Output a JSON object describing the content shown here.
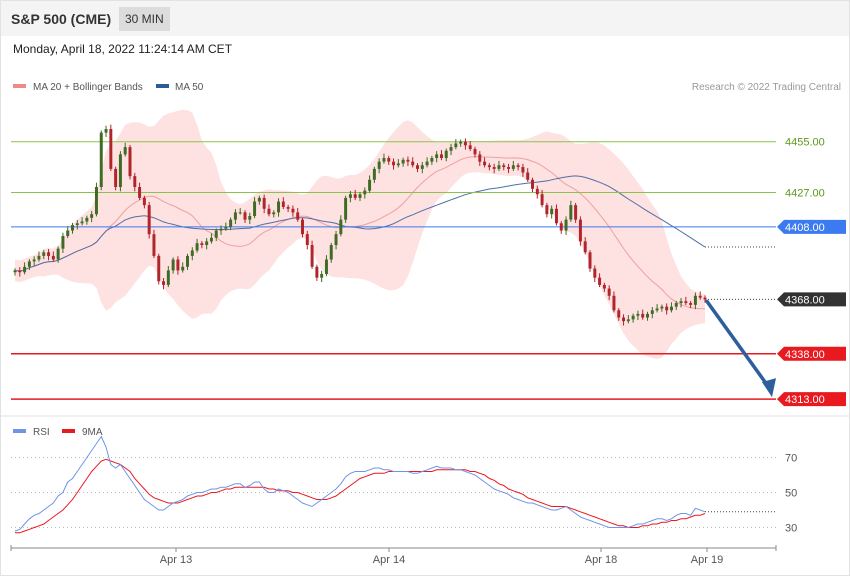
{
  "header": {
    "title": "S&P 500 (CME)",
    "interval": "30 MIN",
    "timestamp": "Monday, April 18, 2022 11:24:14 AM CET"
  },
  "credit": "Research © 2022 Trading Central",
  "colors": {
    "up": "#3f6b25",
    "down": "#b0242b",
    "bands": "#fdd7d7",
    "ma20": "#f0a0a0",
    "ma50": "#4f6fa8",
    "support": "#e8191f",
    "pivot": "#3b7af0",
    "resistance": "#8bc34a",
    "last": "#333333",
    "arrow": "#2f5e9e",
    "rsi": "#6f95e8",
    "rsi_ma": "#e8191f"
  },
  "chart_data": [
    {
      "type": "candlestick",
      "legend": [
        {
          "name": "MA 20 + Bollinger Bands",
          "color": "#f08a8a"
        },
        {
          "name": "MA 50",
          "color": "#2d5b9a"
        }
      ],
      "x_ticks": [
        "Apr 13",
        "Apr 14",
        "Apr 18",
        "Apr 19"
      ],
      "ylim": [
        4307,
        4478
      ],
      "levels": [
        {
          "label": "4455.00",
          "value": 4455,
          "kind": "resistance"
        },
        {
          "label": "4427.00",
          "value": 4427,
          "kind": "resistance"
        },
        {
          "label": "4408.00",
          "value": 4408,
          "kind": "pivot"
        },
        {
          "label": "4368.00",
          "value": 4368,
          "kind": "last"
        },
        {
          "label": "4338.00",
          "value": 4338,
          "kind": "support"
        },
        {
          "label": "4313.00",
          "value": 4313,
          "kind": "support"
        }
      ],
      "close": [
        4384,
        4383,
        4386,
        4389,
        4390,
        4392,
        4394,
        4392,
        4390,
        4396,
        4403,
        4406,
        4409,
        4410,
        4411,
        4413,
        4415,
        4430,
        4460,
        4462,
        4440,
        4430,
        4448,
        4452,
        4436,
        4430,
        4424,
        4420,
        4404,
        4392,
        4378,
        4376,
        4384,
        4390,
        4384,
        4386,
        4392,
        4395,
        4399,
        4398,
        4400,
        4402,
        4406,
        4407,
        4408,
        4412,
        4416,
        4416,
        4412,
        4414,
        4422,
        4424,
        4418,
        4415,
        4416,
        4422,
        4419,
        4418,
        4416,
        4412,
        4404,
        4398,
        4386,
        4380,
        4382,
        4390,
        4398,
        4404,
        4412,
        4424,
        4426,
        4424,
        4426,
        4428,
        4434,
        4440,
        4444,
        4446,
        4444,
        4442,
        4443,
        4445,
        4444,
        4442,
        4440,
        4442,
        4444,
        4446,
        4448,
        4446,
        4450,
        4452,
        4454,
        4455,
        4453,
        4451,
        4448,
        4444,
        4442,
        4441,
        4440,
        4442,
        4441,
        4440,
        4442,
        4441,
        4438,
        4434,
        4429,
        4426,
        4420,
        4415,
        4418,
        4410,
        4406,
        4412,
        4420,
        4412,
        4400,
        4394,
        4385,
        4380,
        4376,
        4374,
        4370,
        4362,
        4358,
        4356,
        4357,
        4359,
        4360,
        4358,
        4360,
        4362,
        4363,
        4364,
        4362,
        4364,
        4366,
        4367,
        4366,
        4365,
        4370,
        4369,
        4368
      ],
      "rsi": {
        "ylim": [
          20,
          80
        ],
        "ticks": [
          30,
          50,
          70
        ],
        "rsi": [
          28,
          29,
          32,
          35,
          37,
          38,
          40,
          42,
          44,
          48,
          50,
          56,
          58,
          62,
          66,
          70,
          74,
          78,
          82,
          76,
          66,
          64,
          66,
          62,
          58,
          54,
          50,
          46,
          44,
          42,
          40,
          40,
          42,
          44,
          45,
          46,
          48,
          49,
          50,
          50,
          51,
          52,
          52,
          53,
          53,
          54,
          55,
          55,
          53,
          54,
          56,
          56,
          52,
          50,
          50,
          52,
          51,
          50,
          48,
          46,
          44,
          43,
          42,
          44,
          46,
          48,
          50,
          52,
          55,
          59,
          61,
          62,
          62,
          62,
          63,
          64,
          64,
          63,
          63,
          62,
          62,
          62,
          62,
          61,
          61,
          62,
          63,
          64,
          65,
          64,
          64,
          64,
          63,
          63,
          62,
          61,
          60,
          58,
          56,
          54,
          52,
          51,
          50,
          49,
          47,
          46,
          45,
          44,
          44,
          43,
          42,
          41,
          40,
          40,
          41,
          42,
          40,
          38,
          36,
          35,
          34,
          33,
          32,
          31,
          30,
          30,
          30,
          30,
          30,
          31,
          32,
          32,
          33,
          34,
          35,
          35,
          34,
          35,
          37,
          38,
          38,
          37,
          41,
          40,
          39
        ],
        "ma": [
          27,
          27,
          28,
          29,
          30,
          31,
          32,
          34,
          36,
          38,
          40,
          43,
          46,
          50,
          54,
          58,
          62,
          65,
          68,
          69,
          68,
          67,
          66,
          64,
          62,
          58,
          55,
          52,
          49,
          47,
          46,
          45,
          44,
          44,
          44,
          45,
          46,
          47,
          48,
          48,
          49,
          50,
          50,
          51,
          52,
          52,
          53,
          53,
          53,
          53,
          53,
          53,
          53,
          52,
          52,
          51,
          51,
          51,
          50,
          50,
          49,
          48,
          47,
          46,
          46,
          46,
          47,
          48,
          50,
          52,
          54,
          56,
          58,
          59,
          60,
          61,
          61,
          61,
          62,
          62,
          62,
          62,
          62,
          62,
          62,
          62,
          62,
          62,
          63,
          63,
          63,
          63,
          63,
          63,
          63,
          62,
          62,
          61,
          60,
          58,
          57,
          55,
          54,
          52,
          51,
          50,
          49,
          47,
          46,
          45,
          44,
          43,
          42,
          42,
          42,
          42,
          41,
          40,
          39,
          38,
          37,
          36,
          35,
          34,
          33,
          32,
          31,
          31,
          30,
          30,
          30,
          31,
          31,
          32,
          32,
          33,
          33,
          34,
          34,
          35,
          35,
          36,
          37,
          37,
          38
        ]
      }
    }
  ]
}
